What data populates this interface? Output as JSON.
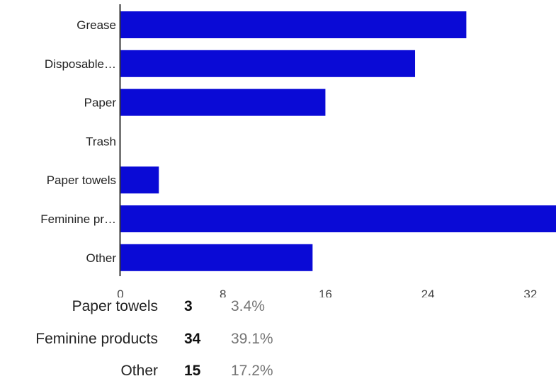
{
  "chart_data": {
    "type": "bar",
    "orientation": "horizontal",
    "categories": [
      "Grease",
      "Disposable…",
      "Paper",
      "Trash",
      "Paper towels",
      "Feminine pr…",
      "Other"
    ],
    "values": [
      27,
      23,
      16,
      0,
      3,
      34,
      15
    ],
    "xlim": [
      0,
      34
    ],
    "xticks": [
      0,
      8,
      16,
      24,
      32
    ],
    "bar_color": "#0a0ad6",
    "grid": false
  },
  "summary": {
    "rows": [
      {
        "label": "Paper towels",
        "count": "3",
        "percent": "3.4%"
      },
      {
        "label": "Feminine products",
        "count": "34",
        "percent": "39.1%"
      },
      {
        "label": "Other",
        "count": "15",
        "percent": "17.2%"
      }
    ]
  }
}
